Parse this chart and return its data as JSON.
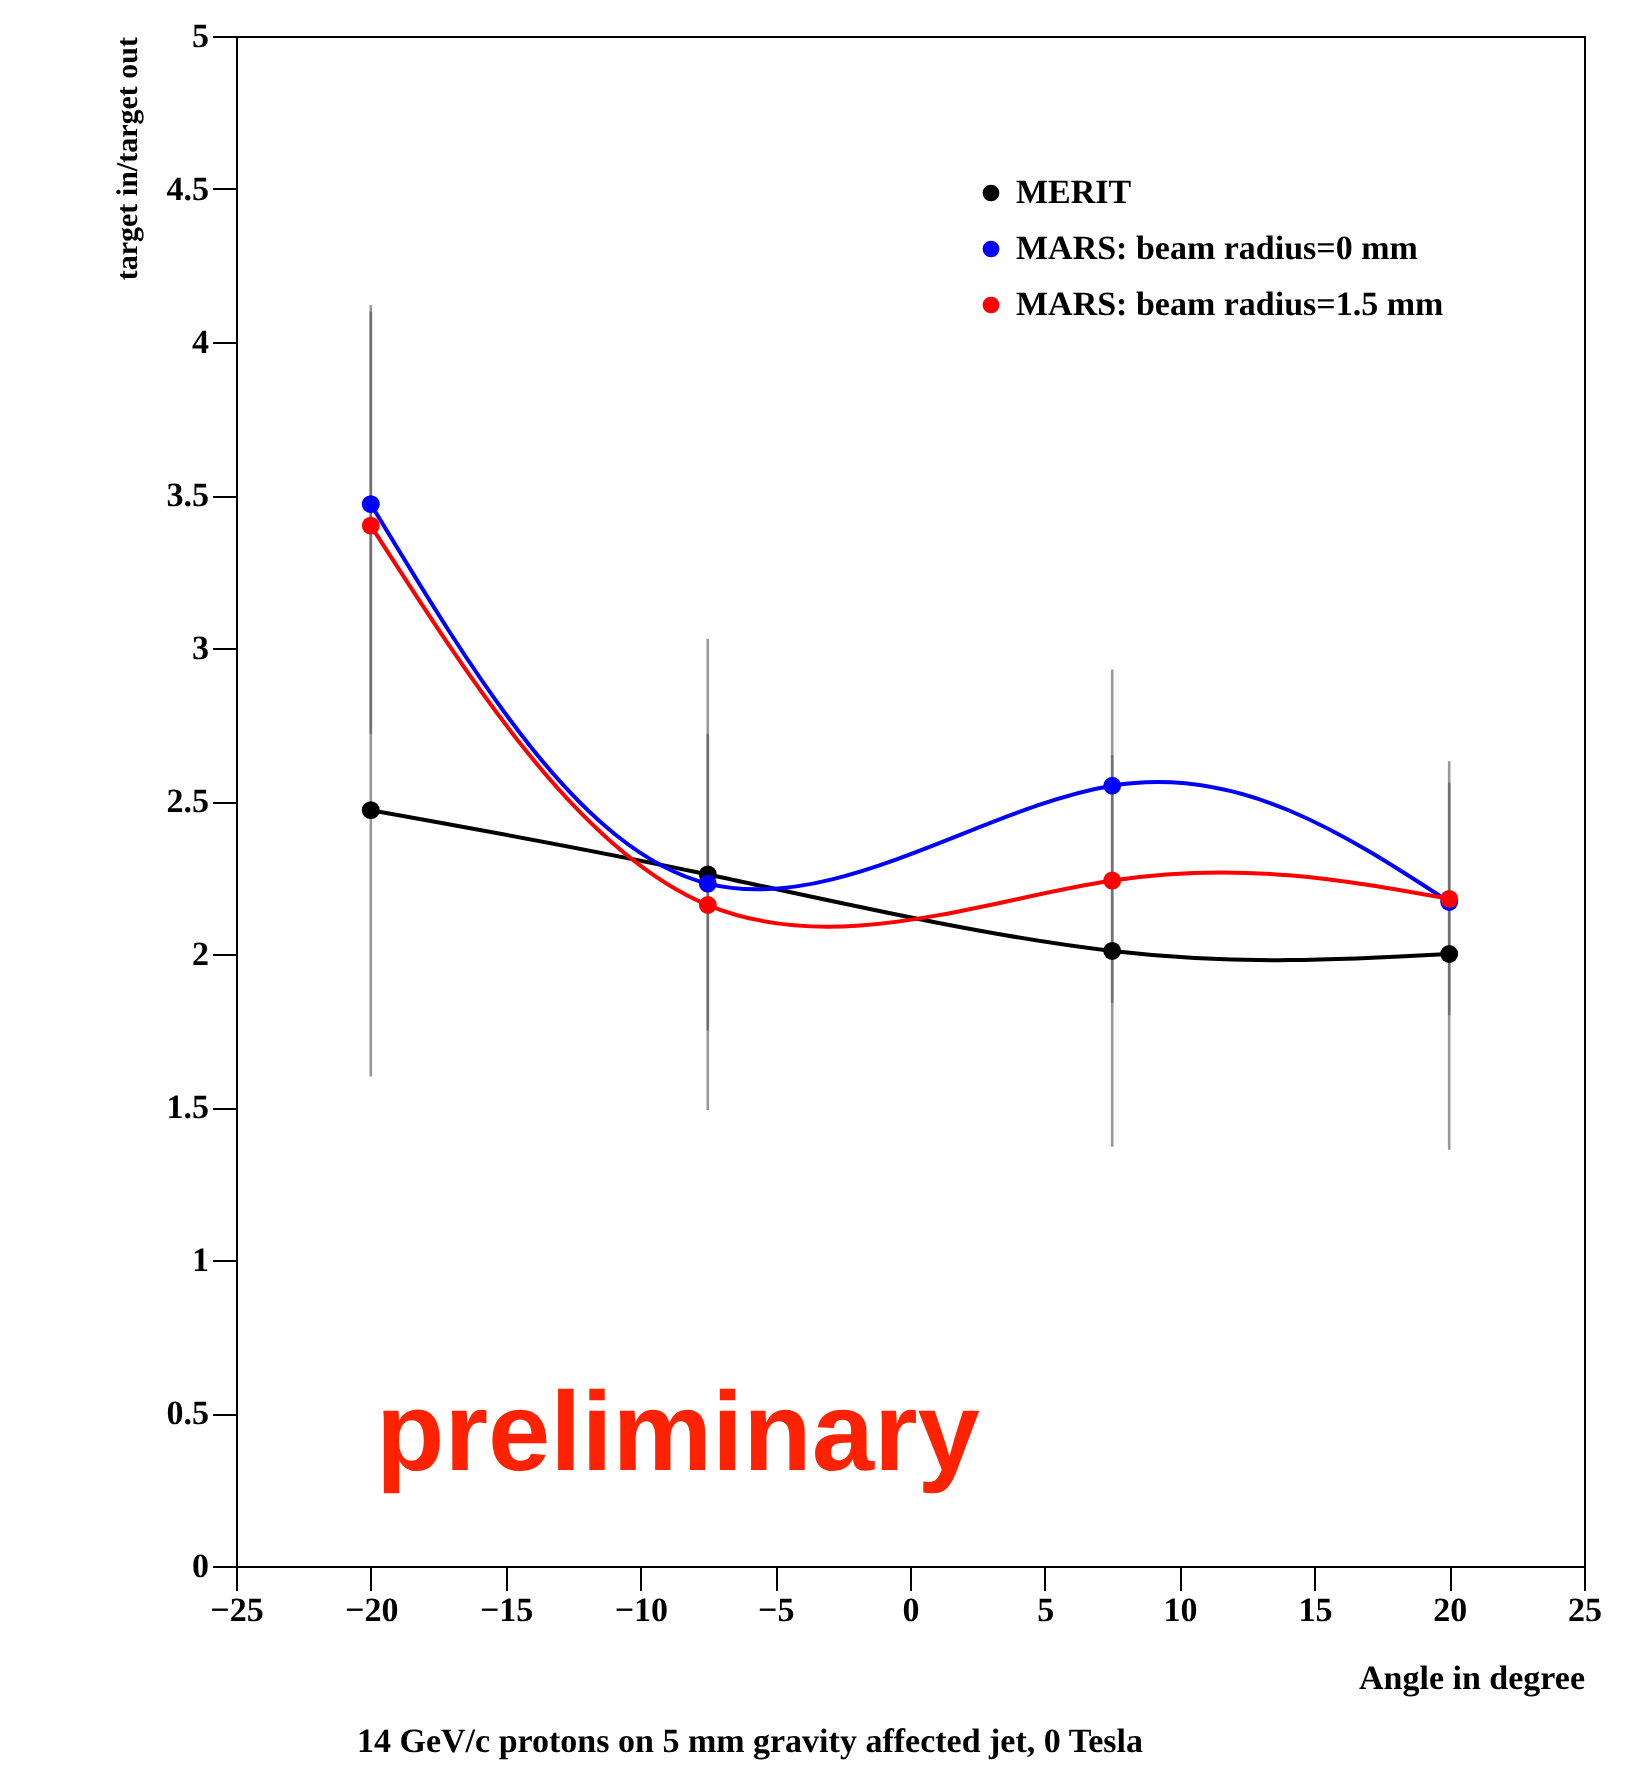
{
  "chart_data": {
    "type": "line",
    "xlabel": "Angle in degree",
    "ylabel": "target in/target out",
    "annotations": [
      "preliminary",
      "14 GeV/c protons on 5 mm gravity affected jet, 0 Tesla"
    ],
    "x": [
      -20,
      -7.5,
      7.5,
      20
    ],
    "series": [
      {
        "name": "MERIT",
        "color": "#000000",
        "values": [
          2.47,
          2.26,
          2.01,
          2.0
        ],
        "errors": [
          [
            1.6,
            4.12
          ],
          [
            1.49,
            3.03
          ],
          [
            1.37,
            2.93
          ],
          [
            1.36,
            2.63
          ]
        ]
      },
      {
        "name": "MARS: beam radius=0 mm",
        "color": "#0000ff",
        "values": [
          3.47,
          2.23,
          2.55,
          2.17
        ]
      },
      {
        "name": "MARS: beam radius=1.5 mm",
        "color": "#ff0000",
        "values": [
          3.4,
          2.16,
          2.24,
          2.18
        ],
        "errors": [
          [
            2.72,
            4.1
          ],
          [
            1.75,
            2.72
          ],
          [
            1.84,
            2.65
          ],
          [
            1.8,
            2.56
          ]
        ]
      }
    ],
    "xlim": [
      -25,
      25
    ],
    "xticks": [
      -25,
      -20,
      -15,
      -10,
      -5,
      0,
      5,
      10,
      15,
      20,
      25
    ],
    "ylim": [
      0,
      5
    ],
    "yticks": [
      0,
      0.5,
      1,
      1.5,
      2,
      2.5,
      3,
      3.5,
      4,
      4.5,
      5
    ],
    "grid": false,
    "legend": "top right",
    "marker": "circle",
    "line_style": "solid"
  }
}
